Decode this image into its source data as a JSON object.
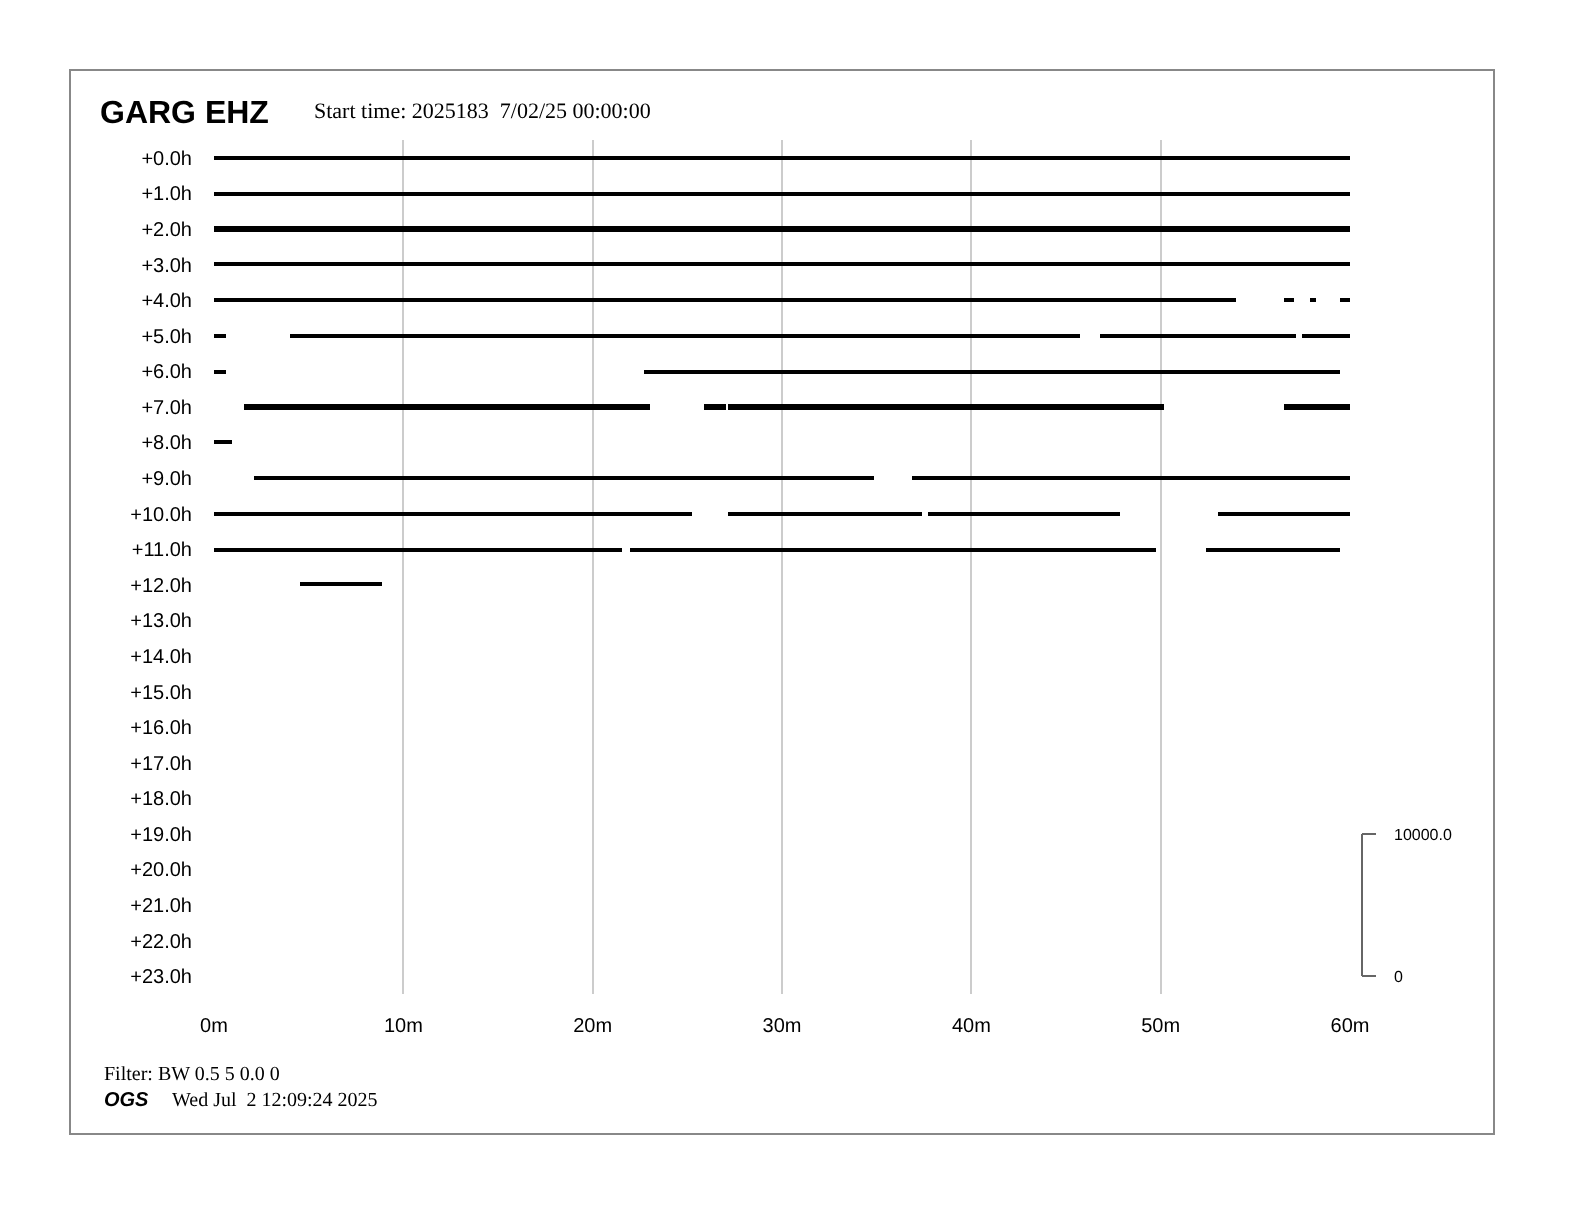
{
  "chart_data": {
    "type": "bar",
    "orientation": "horizontal",
    "title": "GARG EHZ",
    "categories": [
      "+0.0h",
      "+1.0h",
      "+2.0h",
      "+3.0h",
      "+4.0h",
      "+5.0h",
      "+6.0h",
      "+7.0h",
      "+8.0h",
      "+9.0h",
      "+10.0h",
      "+11.0h",
      "+12.0h",
      "+13.0h",
      "+14.0h",
      "+15.0h",
      "+16.0h",
      "+17.0h",
      "+18.0h",
      "+19.0h",
      "+20.0h",
      "+21.0h",
      "+22.0h",
      "+23.0h"
    ],
    "series": [
      {
        "color": "#000000",
        "base": [
          0,
          0,
          0,
          0,
          0,
          0,
          0,
          1.6,
          0,
          2.1,
          0,
          0,
          4.5,
          null,
          null,
          null,
          null,
          null,
          null,
          null,
          null,
          null,
          null,
          null
        ],
        "values": [
          60,
          60,
          60,
          60,
          54,
          0.6,
          0.6,
          21.4,
          0.9,
          32.8,
          25.2,
          21.6,
          4.4,
          null,
          null,
          null,
          null,
          null,
          null,
          null,
          null,
          null,
          null,
          null
        ]
      },
      {
        "color": "#000000",
        "base": [
          null,
          null,
          null,
          null,
          56.5,
          4.0,
          22.7,
          25.9,
          null,
          36.9,
          27.1,
          22.0,
          null,
          null,
          null,
          null,
          null,
          null,
          null,
          null,
          null,
          null,
          null,
          null
        ],
        "values": [
          null,
          null,
          null,
          null,
          0.5,
          41.7,
          36.8,
          1.1,
          null,
          23.1,
          10.3,
          27.8,
          null,
          null,
          null,
          null,
          null,
          null,
          null,
          null,
          null,
          null,
          null,
          null
        ]
      },
      {
        "color": "#000000",
        "base": [
          null,
          null,
          null,
          null,
          57.9,
          46.8,
          null,
          27.2,
          null,
          null,
          37.7,
          52.4,
          null,
          null,
          null,
          null,
          null,
          null,
          null,
          null,
          null,
          null,
          null,
          null
        ],
        "values": [
          null,
          null,
          null,
          null,
          0.3,
          10.4,
          null,
          23.0,
          null,
          null,
          10.2,
          7.1,
          null,
          null,
          null,
          null,
          null,
          null,
          null,
          null,
          null,
          null,
          null,
          null
        ]
      },
      {
        "color": "#000000",
        "base": [
          null,
          null,
          null,
          null,
          59.5,
          57.5,
          null,
          56.5,
          null,
          null,
          53.0,
          null,
          null,
          null,
          null,
          null,
          null,
          null,
          null,
          null,
          null,
          null,
          null,
          null
        ],
        "values": [
          null,
          null,
          null,
          null,
          0.5,
          2.5,
          null,
          3.5,
          null,
          null,
          7.0,
          null,
          null,
          null,
          null,
          null,
          null,
          null,
          null,
          null,
          null,
          null,
          null,
          null
        ]
      }
    ],
    "xlim": [
      0,
      60
    ],
    "xticks": [
      {
        "value": 0,
        "label": "0m"
      },
      {
        "value": 10,
        "label": "10m"
      },
      {
        "value": 20,
        "label": "20m"
      },
      {
        "value": 30,
        "label": "30m"
      },
      {
        "value": 40,
        "label": "40m"
      },
      {
        "value": 50,
        "label": "50m"
      },
      {
        "value": 60,
        "label": "60m"
      }
    ],
    "grid": "x",
    "legend": false,
    "annotations": [
      "Start time: 2025183  7/02/25 00:00:00",
      "Filter: BW 0.5 5 0.0 0",
      "OGS",
      "Wed Jul  2 12:09:24 2025",
      "10000.0",
      "0"
    ]
  }
}
